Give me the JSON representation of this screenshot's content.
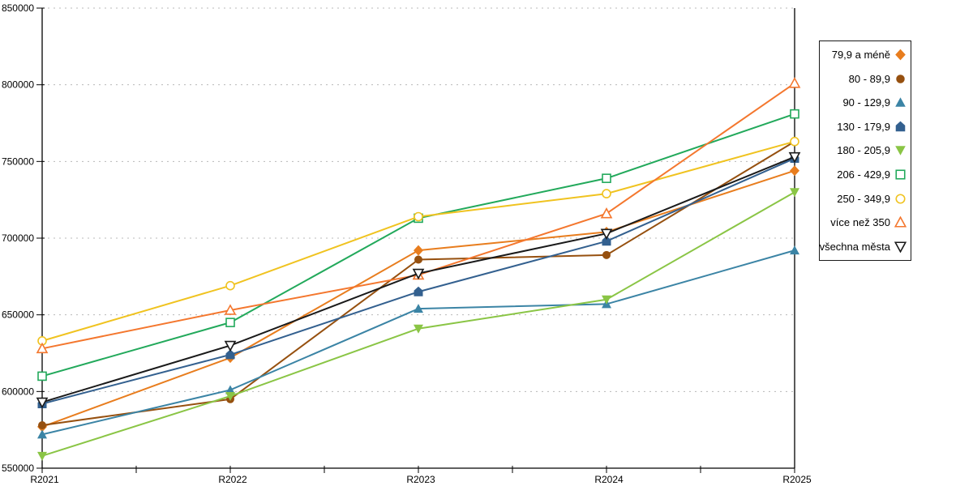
{
  "chart_data": {
    "type": "line",
    "title": "",
    "xlabel": "",
    "ylabel": "",
    "x_labels": [
      "R2021",
      "R2022",
      "R2023",
      "R2024",
      "R2025"
    ],
    "y_ticks": [
      550000,
      600000,
      650000,
      700000,
      750000,
      800000,
      850000
    ],
    "ylim": [
      550000,
      850000
    ],
    "grid": "horizontal-dashed",
    "legend_position": "outside-right",
    "series": [
      {
        "name": "79,9 a méně",
        "marker": "diamond",
        "filled": true,
        "color": "#E87D1E",
        "values": [
          577000,
          622000,
          692000,
          704000,
          744000
        ]
      },
      {
        "name": "80 - 89,9",
        "marker": "circle",
        "filled": true,
        "color": "#96500F",
        "values": [
          578000,
          595000,
          686000,
          689000,
          763000
        ]
      },
      {
        "name": "90 - 129,9",
        "marker": "triangle-up",
        "filled": true,
        "color": "#3B84A5",
        "values": [
          572000,
          601000,
          654000,
          657000,
          692000
        ]
      },
      {
        "name": "130 - 179,9",
        "marker": "pentagon",
        "filled": true,
        "color": "#33608F",
        "values": [
          592000,
          624000,
          665000,
          698000,
          752000
        ]
      },
      {
        "name": "180 - 205,9",
        "marker": "triangle-down",
        "filled": true,
        "color": "#8AC545",
        "values": [
          558000,
          597000,
          641000,
          660000,
          730000
        ]
      },
      {
        "name": "206 - 429,9",
        "marker": "square",
        "filled": false,
        "color": "#22A95B",
        "values": [
          610000,
          645000,
          713000,
          739000,
          781000
        ]
      },
      {
        "name": "250 - 349,9",
        "marker": "circle",
        "filled": false,
        "color": "#F0C320",
        "values": [
          633000,
          669000,
          714000,
          729000,
          763000
        ]
      },
      {
        "name": "více než 350",
        "marker": "triangle-up",
        "filled": false,
        "color": "#F4772E",
        "values": [
          628000,
          653000,
          676000,
          716000,
          801000
        ]
      },
      {
        "name": "všechna města",
        "marker": "triangle-down",
        "filled": false,
        "color": "#1A1A1A",
        "values": [
          593000,
          630000,
          677000,
          703000,
          753000
        ]
      }
    ]
  },
  "colors": {
    "background": "#ffffff",
    "grid": "#b8b8b8",
    "axis": "#000000",
    "legend_border": "#1a1a1a"
  }
}
